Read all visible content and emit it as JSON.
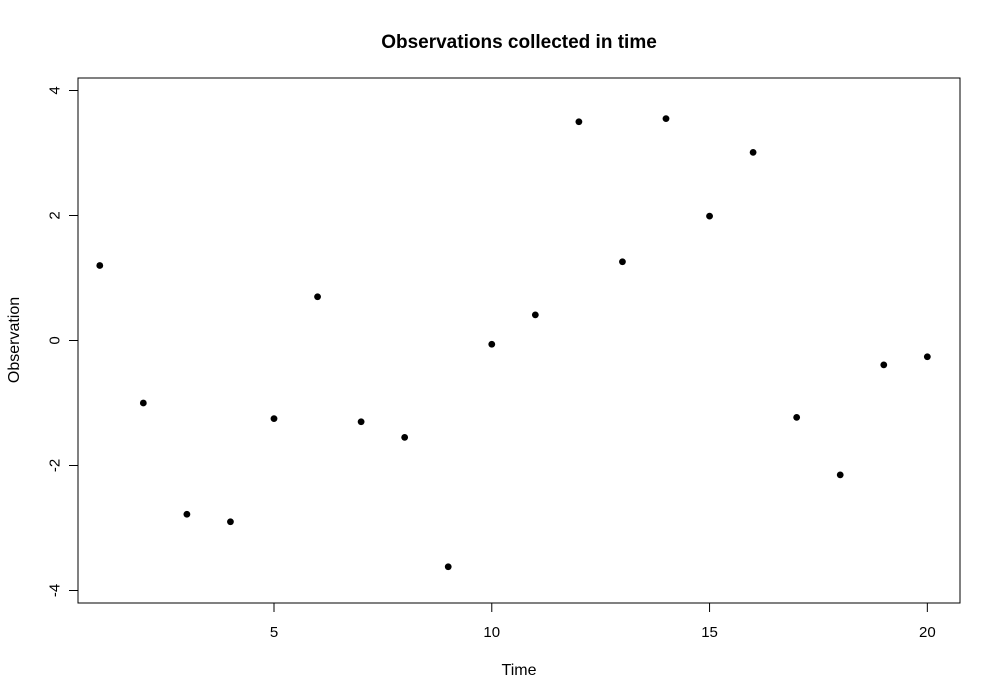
{
  "chart_data": {
    "type": "scatter",
    "title": "Observations collected in time",
    "xlabel": "Time",
    "ylabel": "Observation",
    "xlim": [
      0.5,
      20.75
    ],
    "ylim": [
      -4.2,
      4.2
    ],
    "xticks": [
      5,
      10,
      15,
      20
    ],
    "yticks": [
      -4,
      -2,
      0,
      2,
      4
    ],
    "grid": false,
    "legend": "none",
    "marker_color": "#000000",
    "series": [
      {
        "x": [
          1,
          2,
          3,
          4,
          5,
          6,
          7,
          8,
          9,
          10,
          11,
          12,
          13,
          14,
          15,
          16,
          17,
          18,
          19,
          20
        ],
        "y": [
          1.2,
          -1.0,
          -2.78,
          -2.9,
          -1.25,
          0.7,
          -1.3,
          -1.55,
          -3.62,
          -0.06,
          0.41,
          3.5,
          1.26,
          3.55,
          1.99,
          3.01,
          -1.23,
          -2.15,
          -0.39,
          -0.26
        ]
      }
    ]
  }
}
